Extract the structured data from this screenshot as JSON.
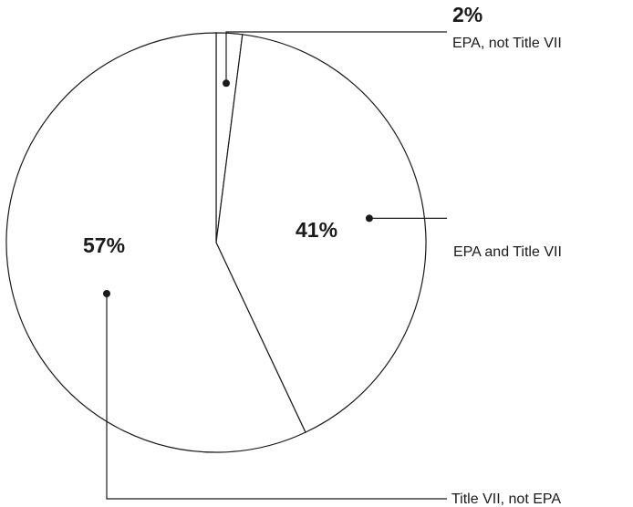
{
  "chart_data": {
    "type": "pie",
    "slices": [
      {
        "label": "EPA, not Title VII",
        "value": 2,
        "value_label": "2%"
      },
      {
        "label": "EPA and Title VII",
        "value": 41,
        "value_label": "41%"
      },
      {
        "label": "Title VII, not EPA",
        "value": 57,
        "value_label": "57%"
      }
    ],
    "start_angle": "12 o'clock",
    "direction": "clockwise",
    "colors": {
      "fill": "#ffffff",
      "stroke": "#1a1a1a"
    }
  }
}
